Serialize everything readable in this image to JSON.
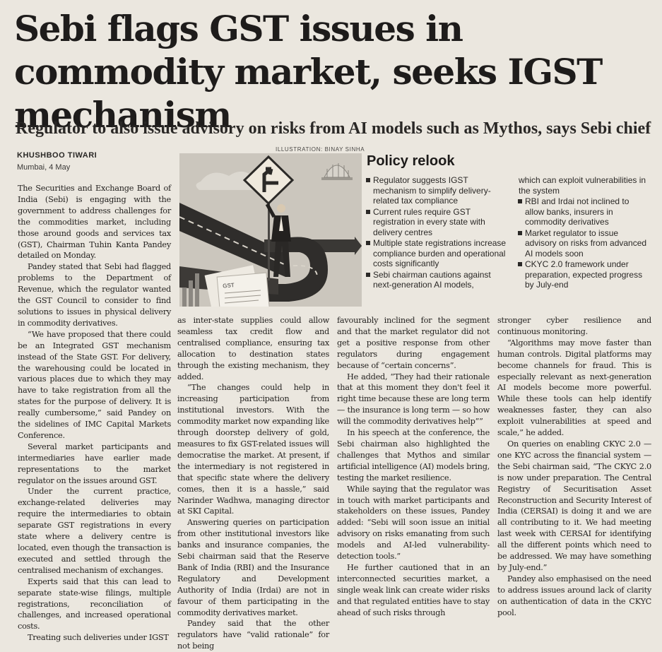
{
  "headline": "Sebi flags GST issues in commodity market, seeks IGST mechanism",
  "deck": "Regulator to also issue advisory on risks from AI models such as Mythos, says Sebi chief",
  "byline": "KHUSHBOO TIWARI",
  "dateline": "Mumbai, 4 May",
  "illustration_credit": "ILLUSTRATION: BINAY SINHA",
  "illustration": {
    "sign_symbol": "diamond road sign",
    "document_label": "GST"
  },
  "policy_relook": {
    "title": "Policy relook",
    "left_items": [
      "Regulator suggests IGST mechanism to simplify delivery-related tax compliance",
      "Current rules require GST registration in every state with delivery centres",
      "Multiple state registrations increase compliance burden and operational costs significantly",
      "Sebi chairman cautions against next-generation AI models,"
    ],
    "right_continuation": "which can exploit vulnerabilities in the system",
    "right_items": [
      "RBI and Irdai not inclined to allow banks, insurers in commodity derivatives",
      "Market regulator to issue advisory on risks from advanced AI models soon",
      "CKYC 2.0 framework under preparation, expected progress by July-end"
    ]
  },
  "body": {
    "col1": [
      "The Securities and Exchange Board of India (Sebi) is engaging with the government to address challenges for the commodities market, including those around goods and services tax (GST), Chairman Tuhin Kanta Pandey detailed on Monday.",
      "Pandey stated that Sebi had flagged problems to the Department of Revenue, which the regulator wanted the GST Council to consider to find solutions to issues in physical delivery in commodity derivatives.",
      "“We have proposed that there could be an Integrated GST mechanism instead of the State GST. For delivery, the warehousing could be located in various places due to which they may have to take registration from all the states for the purpose of delivery. It is really cumbersome,” said Pandey on the sidelines of IMC Capital Markets Conference.",
      "Several market participants and intermediaries have earlier made representations to the market regulator on the issues around GST.",
      "Under the current practice, exchange-related deliveries may require the intermediaries to obtain separate GST registrations in every state where a delivery centre is located, even though the transaction is executed and settled through the centralised mechanism of exchanges.",
      "Experts said that this can lead to separate state-wise filings, multiple registrations, reconciliation of challenges, and increased operational costs.",
      "Treating such deliveries under IGST"
    ],
    "col2": [
      "as inter-state supplies could allow seamless tax credit flow and centralised compliance, ensuring tax allocation to destination states through the existing mechanism, they added.",
      "“The changes could help in increasing participation from institutional investors. With the commodity market now expanding like through doorstep delivery of gold, measures to fix GST-related issues will democratise the market. At present, if the intermediary is not registered in that specific state where the delivery comes, then it is a hassle,” said Narinder Wadhwa, managing director at SKI Capital.",
      "Answering queries on participation from other institutional investors like banks and insurance companies, the Sebi chairman said that the Reserve Bank of India (RBI) and the Insurance Regulatory and Development Authority of India (Irdai) are not in favour of them participating in the commodity derivatives market.",
      "Pandey said that the other regulators have “valid rationale” for not being"
    ],
    "col3": [
      "favourably inclined for the segment and that the market regulator did not get a positive response from other regulators during engagement because of “certain concerns”.",
      "He added, “They had their rationale that at this moment they don't feel it right time because these are long term — the insurance is long term — so how will the commodity derivatives help””",
      "In his speech at the conference, the Sebi chairman also highlighted the challenges that Mythos and similar artificial intelligence (AI) models bring, testing the market resilience.",
      "While saying that the regulator was in touch with market participants and stakeholders on these issues, Pandey added: “Sebi will soon issue an initial advisory on risks emanating from such models and AI-led vulnerability-detection tools.”",
      "He further cautioned that in an interconnected securities market, a single weak link can create wider risks and that regulated entities have to stay ahead of such risks through"
    ],
    "col4": [
      "stronger cyber resilience and continuous monitoring.",
      "“Algorithms may move faster than human controls. Digital platforms may become channels for fraud. This is especially relevant as next-generation AI models become more powerful. While these tools can help identify weaknesses faster, they can also exploit vulnerabilities at speed and scale,” he added.",
      "On queries on enabling CKYC 2.0 — one KYC across the financial system — the Sebi chairman said, “The CKYC 2.0 is now under preparation. The Central Registry of Securitisation Asset Reconstruction and Security Interest of India (CERSAI) is doing it and we are all contributing to it. We had meeting last week with CERSAI for identifying all the different points which need to be addressed. We may have something by July-end.”",
      "Pandey also emphasised on the need to address issues around lack of clarity on authentication of data in the CKYC pool."
    ]
  }
}
